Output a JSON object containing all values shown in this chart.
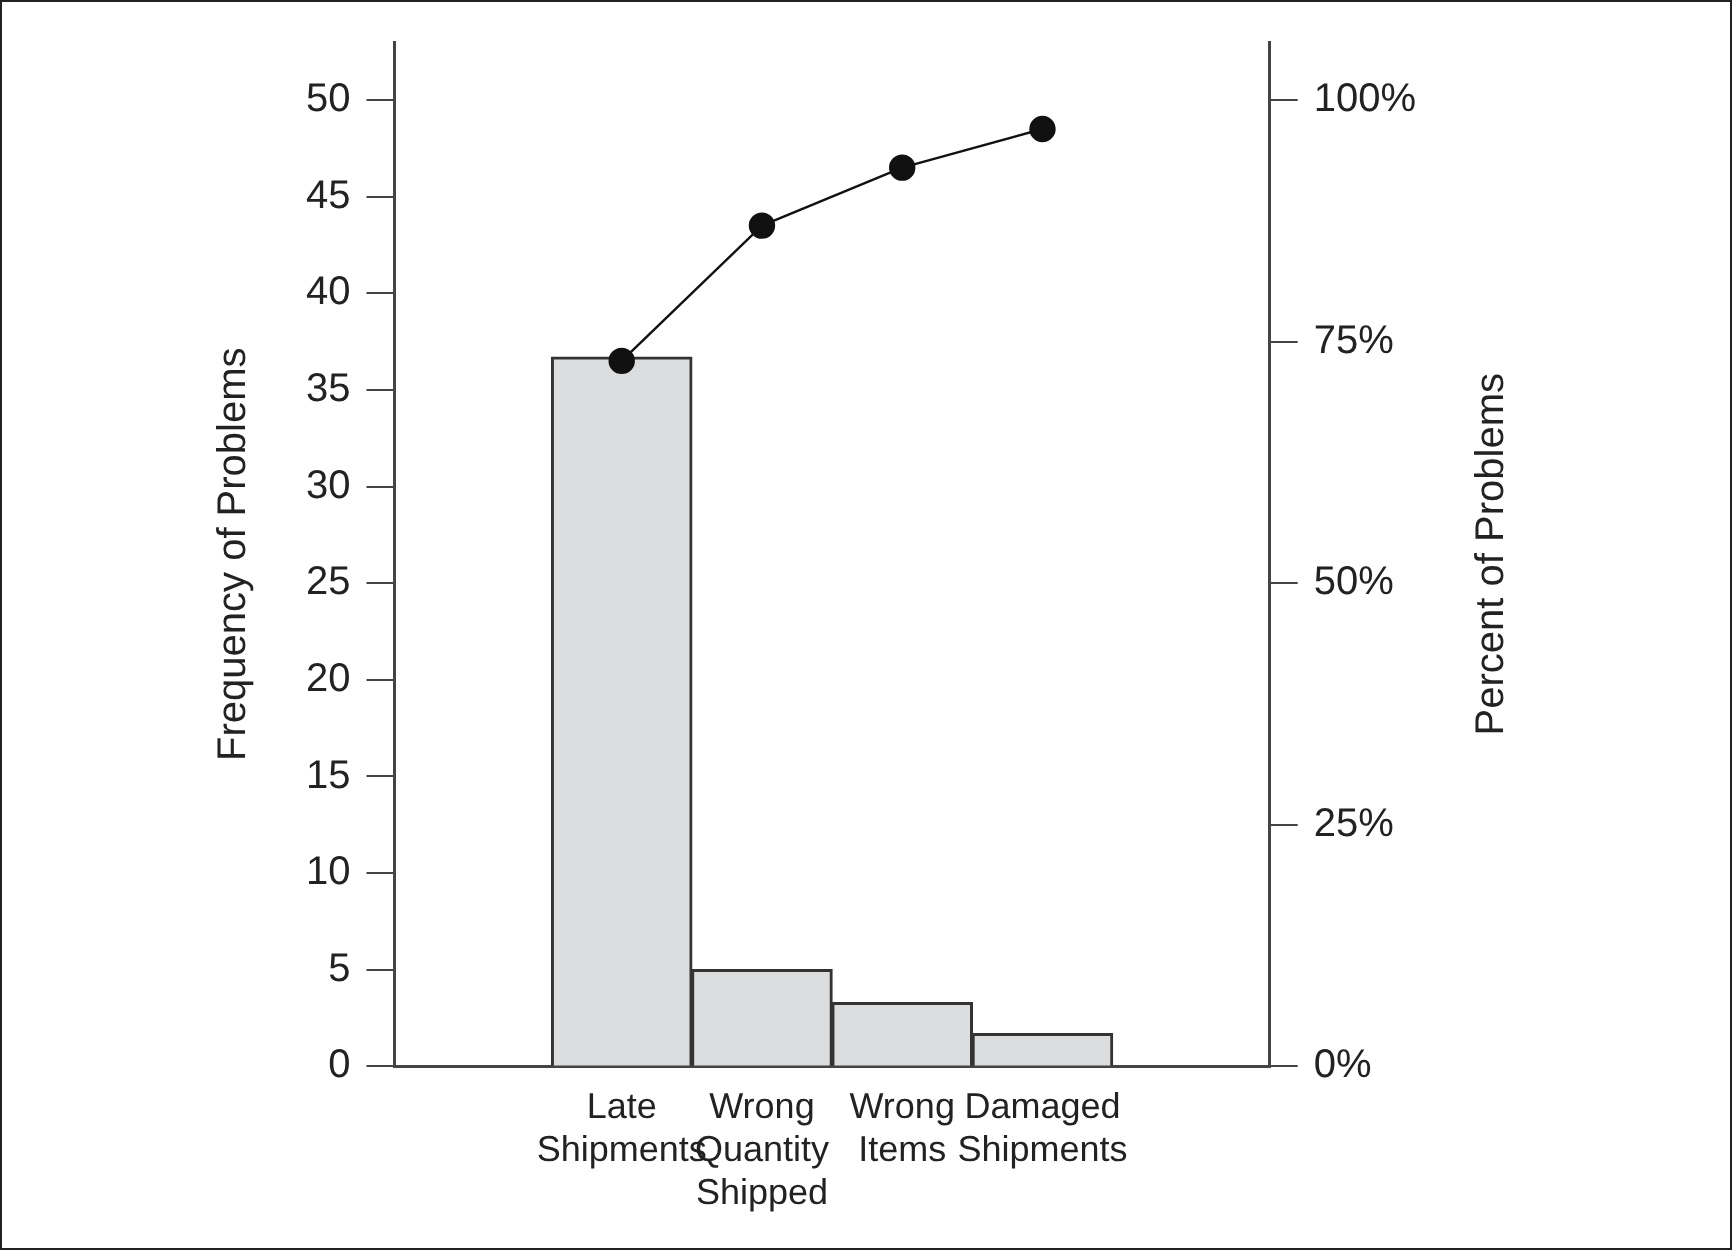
{
  "chart_data": {
    "type": "bar",
    "categories": [
      "Late Shipments",
      "Wrong Quantity Shipped",
      "Wrong Items",
      "Damaged Shipments"
    ],
    "ylabel": "Frequency of Problems",
    "y2label": "Percent of Problems",
    "ylim": [
      0,
      53
    ],
    "yticks": [
      0,
      5,
      10,
      15,
      20,
      25,
      30,
      35,
      40,
      45,
      50
    ],
    "y2lim": [
      0,
      106
    ],
    "y2ticks": [
      {
        "value": 0,
        "label": "0%"
      },
      {
        "value": 25,
        "label": "25%"
      },
      {
        "value": 50,
        "label": "50%"
      },
      {
        "value": 75,
        "label": "75%"
      },
      {
        "value": 100,
        "label": "100%"
      }
    ],
    "grid": false,
    "marker": "circle",
    "line_style": "solid",
    "series": [
      {
        "color": "#dcdddf",
        "values": [
          36.7,
          5.0,
          3.3,
          1.7
        ]
      },
      {
        "type": "line",
        "axis": "y2",
        "color": "#111111",
        "values": [
          73,
          87,
          93,
          97
        ]
      }
    ]
  }
}
